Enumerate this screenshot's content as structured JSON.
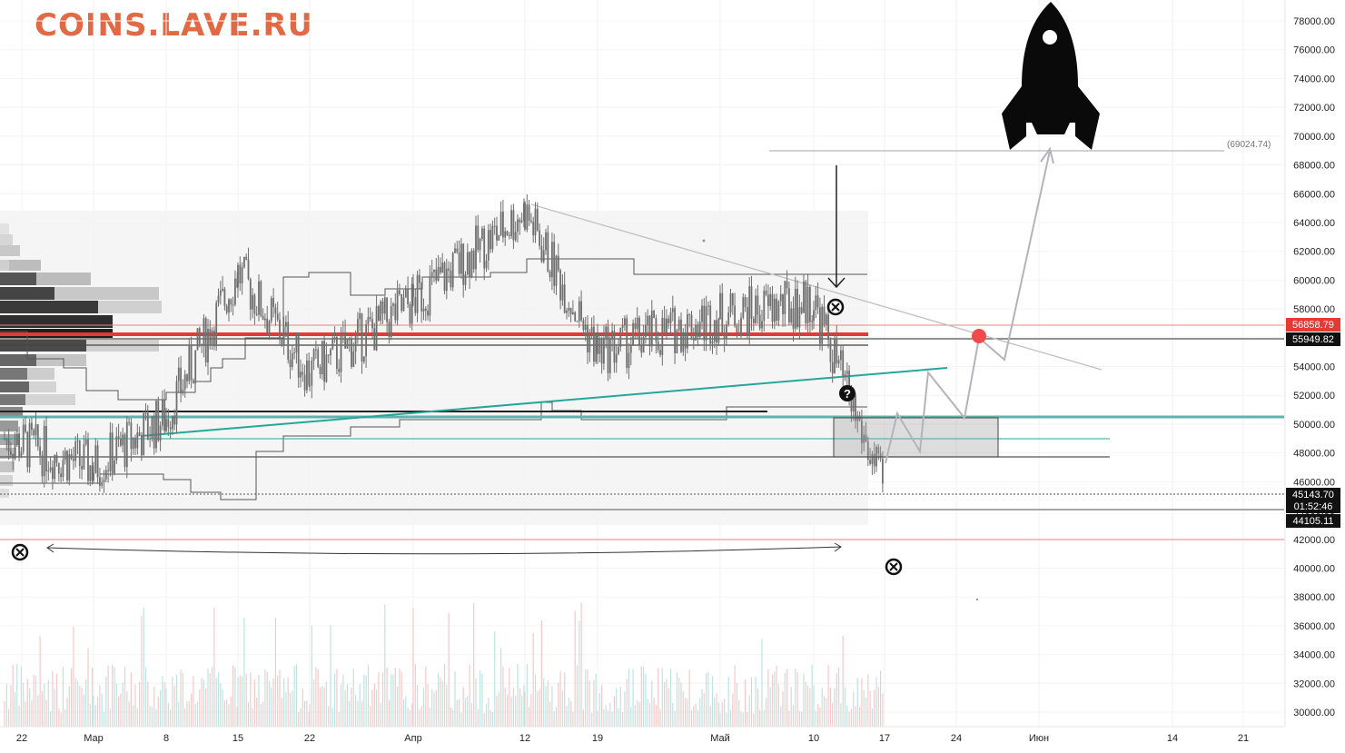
{
  "watermark": "COINS.LAVE.RU",
  "chart_data": {
    "type": "candlestick",
    "x_ticks": [
      "22",
      "Мар",
      "8",
      "15",
      "22",
      "Апр",
      "12",
      "19",
      "Май",
      "10",
      "17",
      "24",
      "Июн",
      "14",
      "21"
    ],
    "y_ticks": [
      "78000.00",
      "76000.00",
      "74000.00",
      "72000.00",
      "70000.00",
      "68000.00",
      "66000.00",
      "64000.00",
      "62000.00",
      "60000.00",
      "58000.00",
      "56000.00",
      "54000.00",
      "52000.00",
      "50000.00",
      "48000.00",
      "46000.00",
      "44000.00",
      "42000.00",
      "40000.00",
      "38000.00",
      "36000.00",
      "34000.00",
      "32000.00",
      "30000.00"
    ],
    "ylim": [
      29000,
      79500
    ],
    "price_labels": {
      "red_level": "56858.79",
      "dark_level": "55949.82",
      "current_price": "45143.70",
      "countdown": "01:52:46",
      "low_level": "44105.11"
    },
    "target_label": "(69024.74)",
    "key_points": [
      {
        "x": "22",
        "close": 49000
      },
      {
        "x": "Мар",
        "close": 47000
      },
      {
        "x": "8",
        "close": 50500
      },
      {
        "x": "15",
        "close": 60500
      },
      {
        "x": "22",
        "close": 53500
      },
      {
        "x": "Апр",
        "close": 58500
      },
      {
        "x": "12",
        "close": 64800
      },
      {
        "x": "19",
        "close": 55000
      },
      {
        "x": "Май",
        "close": 57500
      },
      {
        "x": "10",
        "close": 58500
      },
      {
        "x": "17",
        "close": 45143.7
      }
    ],
    "colors": {
      "candle": "#6f6f6f",
      "red_line": "#e53935",
      "teal_line": "#26a69a",
      "watermark": "#e06a45"
    }
  }
}
